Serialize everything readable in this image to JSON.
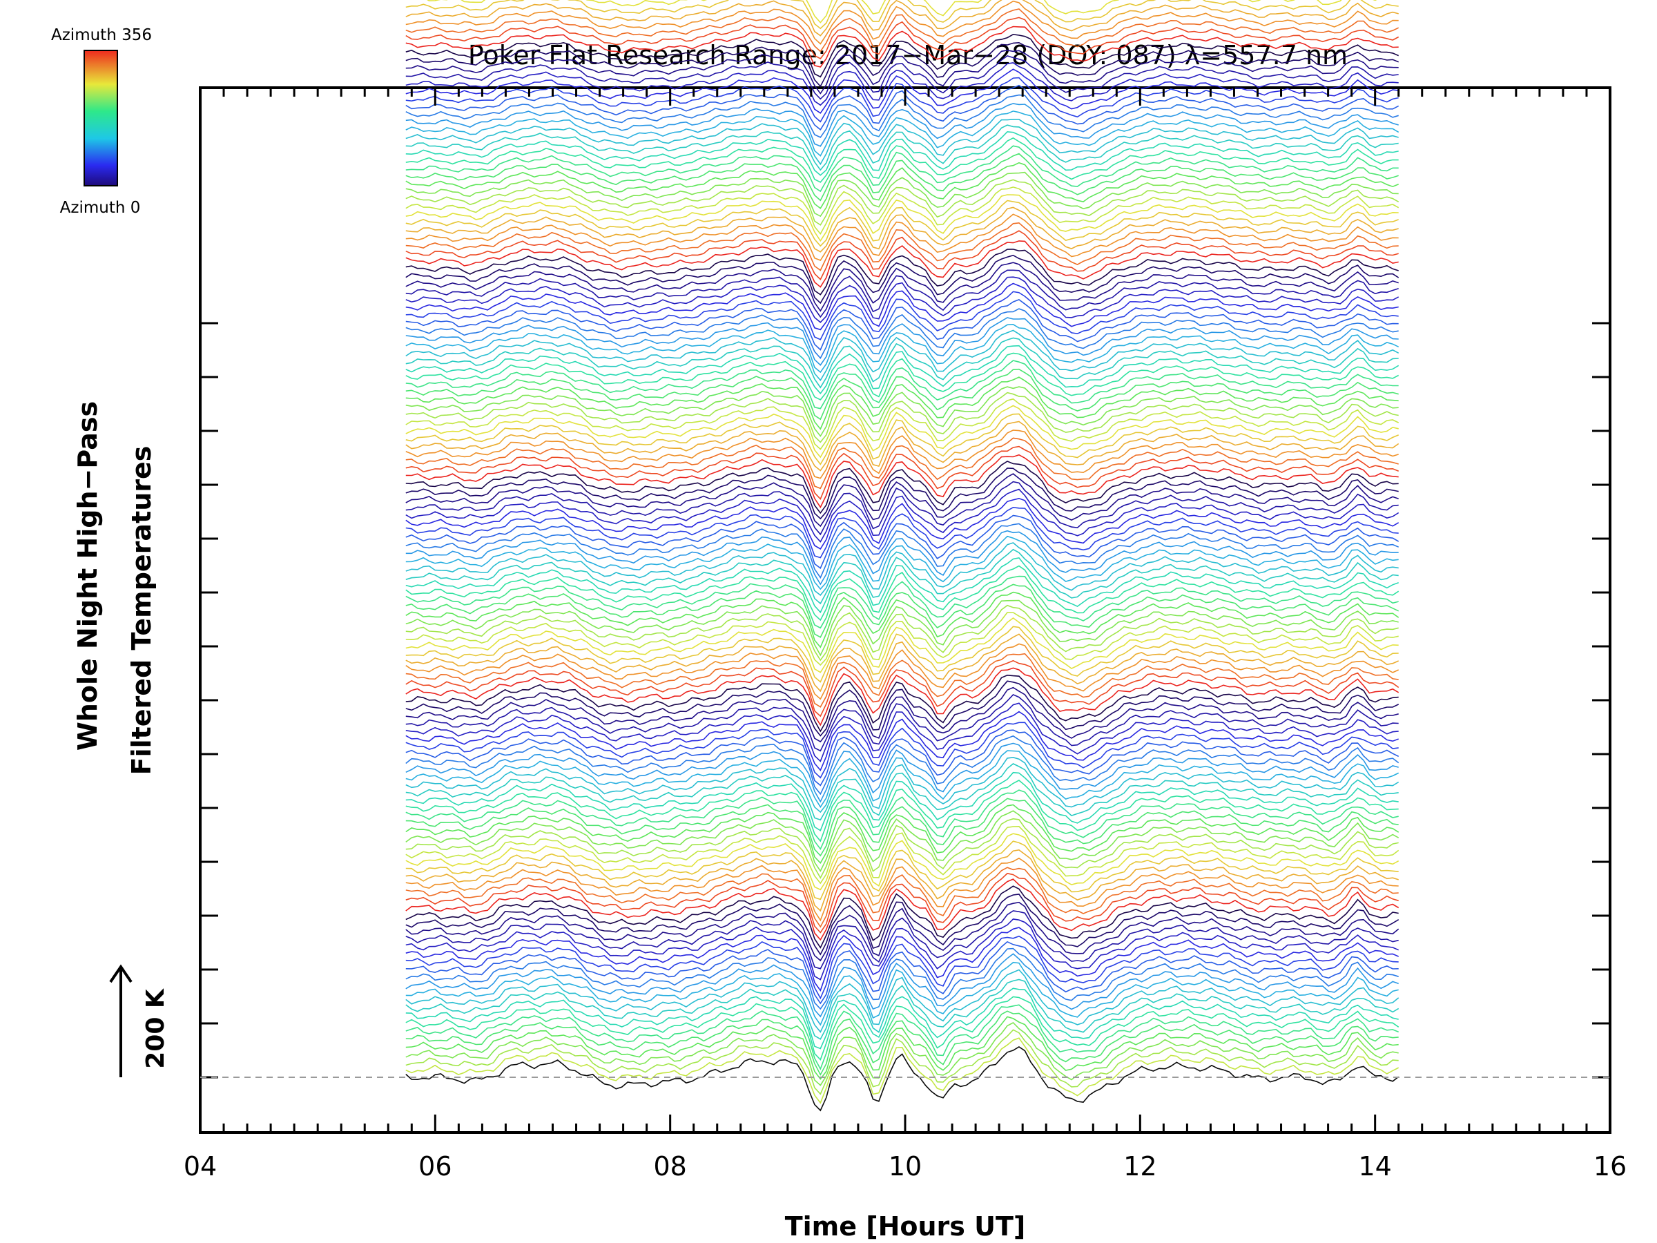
{
  "chart_data": {
    "type": "line",
    "title": "Poker Flat Research Range: 2017−Mar−28 (DOY: 087) λ=557.7 nm",
    "xlabel": "Time [Hours UT]",
    "ylabel_line1": "Whole Night High−Pass",
    "ylabel_line2": "Filtered Temperatures",
    "xlim": [
      4,
      16
    ],
    "x_ticks": [
      "04",
      "06",
      "08",
      "10",
      "12",
      "14",
      "16"
    ],
    "x_range_data": [
      5.75,
      14.2
    ],
    "n_series": 141,
    "series_spacing_K": 14.3,
    "scale_bar": {
      "label": "200 K",
      "value_K": 200
    },
    "colorbar": {
      "label_top": "Azimuth 356",
      "label_bottom": "Azimuth 0",
      "min": 0,
      "max": 356,
      "colormap": "rainbow"
    },
    "baseline": "dashed gray line at zero of first series",
    "grid": false,
    "legend": "colorbar top-left"
  }
}
